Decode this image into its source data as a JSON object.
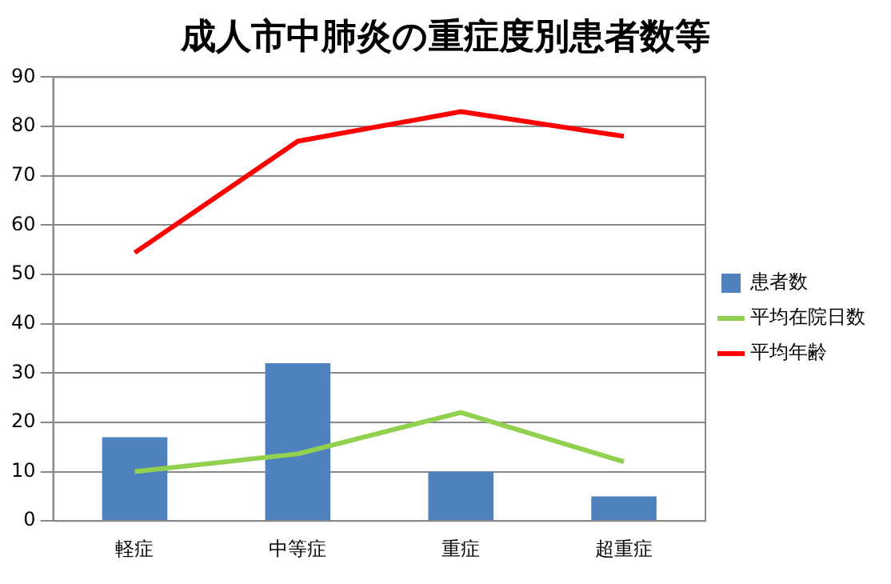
{
  "chart_data": {
    "type": "bar",
    "title": "成人市中肺炎の重症度別患者数等",
    "categories": [
      "軽症",
      "中等症",
      "重症",
      "超重症"
    ],
    "series": [
      {
        "name": "患者数",
        "color": "#4f81bd",
        "values": [
          17,
          32,
          10,
          5
        ]
      },
      {
        "name": "平均在院日数",
        "type": "line",
        "color": "#92d050",
        "values": [
          10,
          13.6,
          22,
          12
        ]
      },
      {
        "name": "平均年齢",
        "type": "line",
        "color": "#ff0000",
        "values": [
          54.4,
          77,
          83,
          78
        ]
      }
    ],
    "ylim": [
      0,
      90
    ],
    "yticks": [
      0,
      10,
      20,
      30,
      40,
      50,
      60,
      70,
      80,
      90
    ],
    "grid": "y",
    "legend": "right",
    "marker": "none"
  }
}
